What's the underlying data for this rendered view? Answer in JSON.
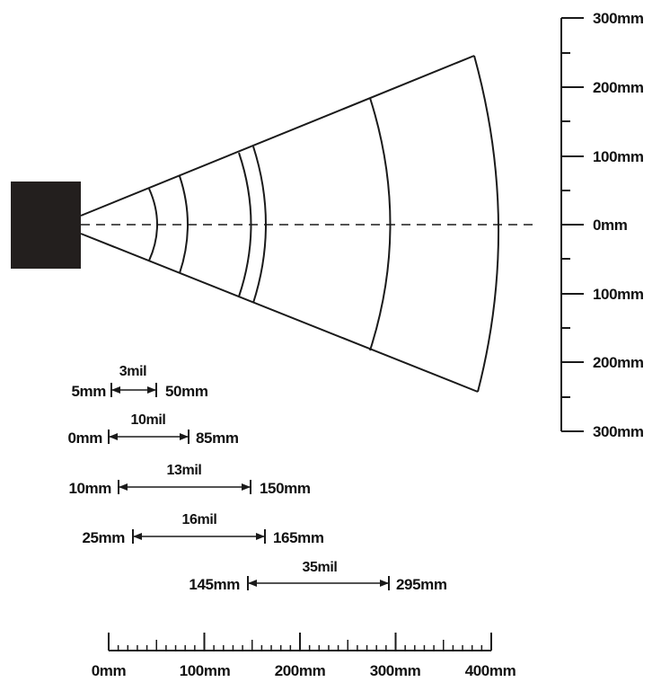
{
  "diagram": {
    "right_scale": {
      "labels": [
        "300mm",
        "200mm",
        "100mm",
        "0mm",
        "100mm",
        "200mm",
        "300mm"
      ]
    },
    "bottom_scale": {
      "labels": [
        "0mm",
        "100mm",
        "200mm",
        "300mm",
        "400mm"
      ]
    },
    "ranges": [
      {
        "resolution": "3mil",
        "near": "5mm",
        "far": "50mm"
      },
      {
        "resolution": "10mil",
        "near": "0mm",
        "far": "85mm"
      },
      {
        "resolution": "13mil",
        "near": "10mm",
        "far": "150mm"
      },
      {
        "resolution": "16mil",
        "near": "25mm",
        "far": "165mm"
      },
      {
        "resolution": "35mil",
        "near": "145mm",
        "far": "295mm"
      }
    ],
    "colors": {
      "scanner": "#231f1e",
      "line": "#1a1a1a"
    }
  }
}
